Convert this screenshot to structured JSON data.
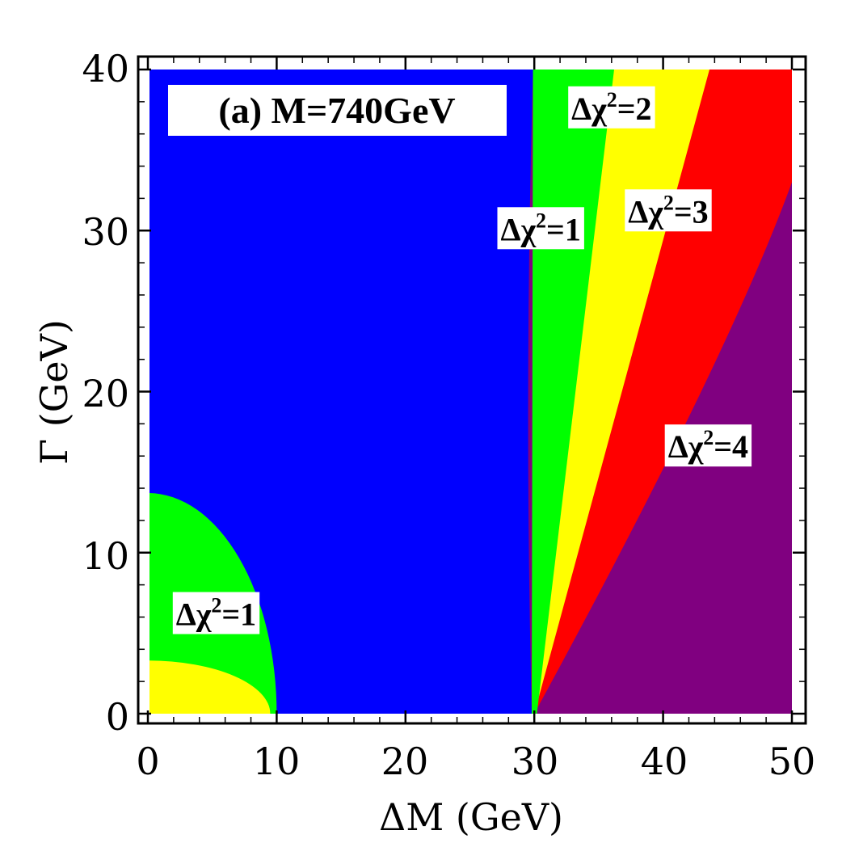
{
  "chart_data": {
    "type": "heatmap",
    "title": "(a) M=740GeV",
    "xlabel": "ΔM (GeV)",
    "ylabel": "Γ (GeV)",
    "xlim": [
      0,
      50
    ],
    "ylim": [
      0,
      40
    ],
    "x_ticks": [
      "0",
      "10",
      "20",
      "30",
      "40",
      "50"
    ],
    "y_ticks": [
      "0",
      "10",
      "20",
      "30",
      "40"
    ],
    "colors": {
      "blue": "#0000ff",
      "green": "#00ff00",
      "yellow": "#ffff00",
      "red": "#ff0000",
      "purple": "#800080"
    },
    "regions": [
      {
        "name": "delta-chi2-below-1",
        "color": "blue",
        "x_range": [
          0,
          30
        ]
      },
      {
        "name": "delta-chi2-1-to-2",
        "color": "green",
        "boundary_top": [
          30,
          36
        ],
        "boundary_bottom": [
          30,
          30
        ]
      },
      {
        "name": "delta-chi2-2-to-3",
        "color": "yellow",
        "boundary_top": [
          36,
          43.5
        ]
      },
      {
        "name": "delta-chi2-3-to-4",
        "color": "red",
        "boundary_right_at_top": 50,
        "boundary_right_at_x50": 33
      },
      {
        "name": "delta-chi2-above-4",
        "color": "purple"
      },
      {
        "name": "low-corner-green",
        "color": "green",
        "radius_x": 10,
        "radius_y": 13.7
      },
      {
        "name": "low-corner-yellow",
        "color": "yellow",
        "radius_x": 9.5,
        "radius_y": 3.3
      }
    ],
    "annotations": [
      {
        "prefix": "Δχ",
        "sup": "2",
        "suffix": "=2",
        "x": 36,
        "y": 37.6
      },
      {
        "prefix": "Δχ",
        "sup": "2",
        "suffix": "=1",
        "x": 30.5,
        "y": 30.1
      },
      {
        "prefix": "Δχ",
        "sup": "2",
        "suffix": "=3",
        "x": 40.4,
        "y": 31.2
      },
      {
        "prefix": "Δχ",
        "sup": "2",
        "suffix": "=4",
        "x": 43.5,
        "y": 16.6
      },
      {
        "prefix": "Δχ",
        "sup": "2",
        "suffix": "=1",
        "x": 5.3,
        "y": 6.2
      }
    ]
  }
}
